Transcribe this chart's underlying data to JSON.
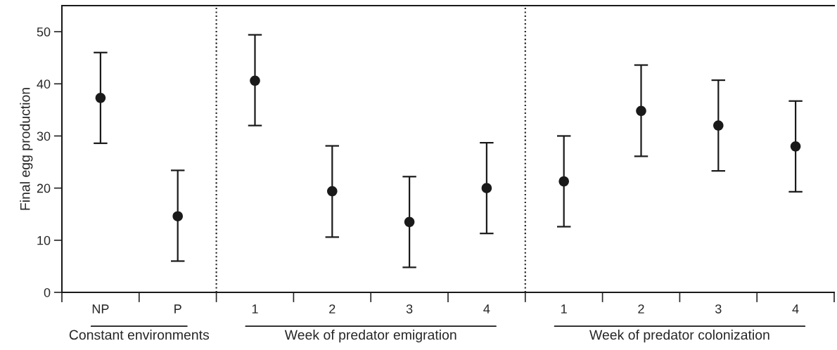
{
  "chart_data": {
    "type": "scatter",
    "ylabel": "Final egg production",
    "categories": [
      "NP",
      "P",
      "1",
      "2",
      "3",
      "4",
      "1",
      "2",
      "3",
      "4"
    ],
    "values": [
      37.3,
      14.6,
      40.6,
      19.4,
      13.5,
      20.0,
      21.3,
      34.8,
      32.0,
      28.0
    ],
    "errors": [
      [
        28.6,
        46.0
      ],
      [
        6.0,
        23.4
      ],
      [
        32.0,
        49.4
      ],
      [
        10.6,
        28.1
      ],
      [
        4.8,
        22.2
      ],
      [
        11.3,
        28.7
      ],
      [
        12.6,
        30.0
      ],
      [
        26.1,
        43.6
      ],
      [
        23.3,
        40.7
      ],
      [
        19.3,
        36.7
      ]
    ],
    "color": "#1a1a1a",
    "marker": "circle",
    "ylim": [
      0,
      55
    ],
    "yticks": [
      0,
      10,
      20,
      30,
      40,
      50
    ],
    "annotations": [
      "Constant environments",
      "Week of predator emigration",
      "Week of predator colonization"
    ],
    "grid": false,
    "legend": false
  }
}
